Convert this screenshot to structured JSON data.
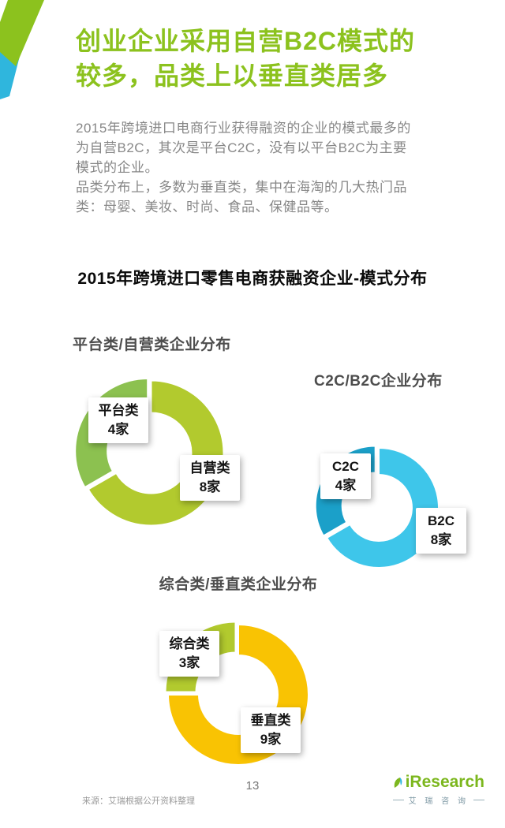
{
  "page": {
    "title_line1": "创业企业采用自营B2C模式的",
    "title_line2": "较多，品类上以垂直类居多",
    "intro_lines": [
      "2015年跨境进口电商行业获得融资的企业的模式最多的",
      "为自营B2C，其次是平台C2C，没有以平台B2C为主要",
      "模式的企业。",
      "品类分布上，多数为垂直类，集中在海淘的几大热门品",
      "类：母婴、美妆、时尚、食品、保健品等。"
    ],
    "section_title": "2015年跨境进口零售电商获融资企业-模式分布",
    "footer": {
      "source": "来源：艾瑞根据公开资料整理",
      "page_number": "13",
      "logo_text": "iResearch",
      "logo_sub": "艾 瑞 咨 询"
    },
    "accent_green": "#8cc21e",
    "accent_blue": "#2fb6dd"
  },
  "chart_data": [
    {
      "type": "pie",
      "title": "平台类/自营类企业分布",
      "unit": "家",
      "total": 12,
      "segments": [
        {
          "label": "平台类",
          "value": 4,
          "count_label": "4家",
          "color": "#8cc150"
        },
        {
          "label": "自营类",
          "value": 8,
          "count_label": "8家",
          "color": "#b2ca2e"
        }
      ]
    },
    {
      "type": "pie",
      "title": "C2C/B2C企业分布",
      "unit": "家",
      "total": 12,
      "segments": [
        {
          "label": "C2C",
          "value": 4,
          "count_label": "4家",
          "color": "#1ba0c9"
        },
        {
          "label": "B2C",
          "value": 8,
          "count_label": "8家",
          "color": "#3ec6ea"
        }
      ]
    },
    {
      "type": "pie",
      "title": "综合类/垂直类企业分布",
      "unit": "家",
      "total": 12,
      "segments": [
        {
          "label": "综合类",
          "value": 3,
          "count_label": "3家",
          "color": "#b2ca2e"
        },
        {
          "label": "垂直类",
          "value": 9,
          "count_label": "9家",
          "color": "#f9c303"
        }
      ]
    }
  ]
}
